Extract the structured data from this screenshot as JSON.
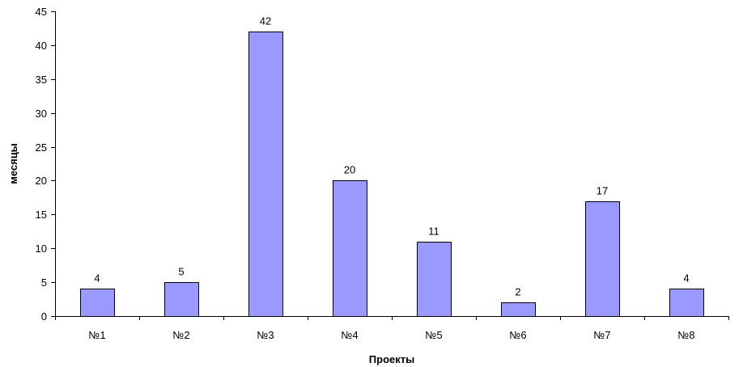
{
  "chart_data": {
    "type": "bar",
    "categories": [
      "№1",
      "№2",
      "№3",
      "№4",
      "№5",
      "№6",
      "№7",
      "№8"
    ],
    "values": [
      4,
      5,
      42,
      20,
      11,
      2,
      17,
      4
    ],
    "data_labels": [
      "4",
      "5",
      "42",
      "20",
      "11",
      "2",
      "17",
      "4"
    ],
    "title": "",
    "xlabel": "Проекты",
    "ylabel": "месяцы",
    "ylim": [
      0,
      45
    ],
    "yticks": [
      "0",
      "5",
      "10",
      "15",
      "20",
      "25",
      "30",
      "35",
      "40",
      "45"
    ],
    "grid": false,
    "legend": "none",
    "colors": {
      "bar_fill": "#9999ff",
      "bar_stroke": "#000000",
      "axis": "#000000",
      "text": "#000000",
      "background": "#ffffff"
    }
  }
}
